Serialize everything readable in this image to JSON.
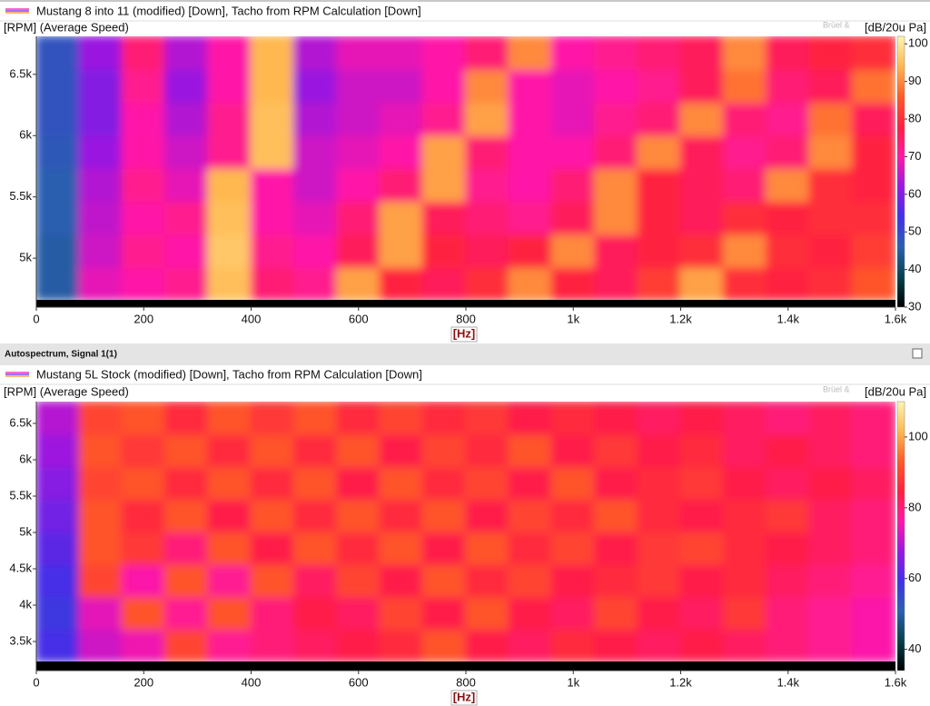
{
  "chart_data": [
    {
      "type": "heatmap",
      "legend": "Mustang 8 into 11 (modified) [Down], Tacho from RPM Calculation [Down]",
      "ylabel": "[RPM] (Average Speed)",
      "xlabel": "[Hz]",
      "colorbar_label": "[dB/20u Pa]",
      "watermark": "Brüel &",
      "xlim": [
        0,
        1600
      ],
      "xticks": [
        0,
        200,
        400,
        600,
        800,
        {
          "value": 1000,
          "label": "1k"
        },
        {
          "value": 1200,
          "label": "1.2k"
        },
        {
          "value": 1400,
          "label": "1.4k"
        },
        {
          "value": 1600,
          "label": "1.6k"
        }
      ],
      "ylim": [
        4660,
        6810
      ],
      "yticks": [
        {
          "value": 5000,
          "label": "5k"
        },
        {
          "value": 5500,
          "label": "5.5k"
        },
        {
          "value": 6000,
          "label": "6k"
        },
        {
          "value": 6500,
          "label": "6.5k"
        }
      ],
      "clim": [
        30,
        102
      ],
      "cticks": [
        30,
        40,
        50,
        60,
        70,
        80,
        90,
        100
      ],
      "colormap": [
        "#000000",
        "#06404c",
        "#2c5fb0",
        "#4030e8",
        "#9a18e0",
        "#ff18a8",
        "#ff2040",
        "#ff5a28",
        "#ffb850",
        "#fff4b0"
      ],
      "z": [
        [
          45,
          68,
          70,
          72,
          95,
          74,
          72,
          92,
          78,
          76,
          80,
          90,
          78,
          76,
          82,
          92,
          80,
          78,
          80,
          85
        ],
        [
          45,
          66,
          72,
          70,
          96,
          72,
          70,
          76,
          92,
          78,
          76,
          78,
          90,
          76,
          78,
          80,
          90,
          80,
          78,
          82
        ],
        [
          46,
          65,
          70,
          72,
          95,
          70,
          68,
          74,
          92,
          76,
          74,
          72,
          76,
          90,
          78,
          76,
          80,
          78,
          80,
          80
        ],
        [
          46,
          64,
          72,
          68,
          94,
          70,
          66,
          70,
          74,
          92,
          72,
          70,
          74,
          90,
          78,
          76,
          74,
          90,
          80,
          78
        ],
        [
          47,
          62,
          70,
          66,
          72,
          95,
          66,
          68,
          70,
          92,
          74,
          70,
          70,
          74,
          90,
          76,
          72,
          74,
          90,
          78
        ],
        [
          48,
          60,
          70,
          64,
          72,
          95,
          64,
          66,
          68,
          72,
          92,
          70,
          68,
          72,
          74,
          90,
          74,
          72,
          88,
          76
        ],
        [
          48,
          60,
          72,
          62,
          70,
          94,
          62,
          66,
          66,
          70,
          90,
          70,
          68,
          70,
          72,
          76,
          88,
          74,
          76,
          88
        ],
        [
          48,
          62,
          74,
          64,
          70,
          94,
          64,
          68,
          68,
          70,
          74,
          90,
          70,
          72,
          74,
          76,
          90,
          76,
          78,
          80
        ]
      ]
    },
    {
      "type": "heatmap",
      "window_title": "Autospectrum, Signal 1(1)",
      "legend": "Mustang 5L Stock (modified) [Down], Tacho from RPM Calculation [Down]",
      "ylabel": "[RPM] (Average Speed)",
      "xlabel": "[Hz]",
      "colorbar_label": "[dB/20u Pa]",
      "watermark": "Brüel &",
      "xlim": [
        0,
        1600
      ],
      "xticks": [
        0,
        200,
        400,
        600,
        800,
        {
          "value": 1000,
          "label": "1k"
        },
        {
          "value": 1200,
          "label": "1.2k"
        },
        {
          "value": 1400,
          "label": "1.4k"
        },
        {
          "value": 1600,
          "label": "1.6k"
        }
      ],
      "ylim": [
        3225,
        6800
      ],
      "yticks": [
        {
          "value": 3500,
          "label": "3.5k"
        },
        {
          "value": 4000,
          "label": "4k"
        },
        {
          "value": 4500,
          "label": "4.5k"
        },
        {
          "value": 5000,
          "label": "5k"
        },
        {
          "value": 5500,
          "label": "5.5k"
        },
        {
          "value": 6000,
          "label": "6k"
        },
        {
          "value": 6500,
          "label": "6.5k"
        }
      ],
      "clim": [
        34,
        110
      ],
      "cticks": [
        40,
        60,
        80,
        100
      ],
      "colormap": [
        "#000000",
        "#06404c",
        "#2c5fb0",
        "#4030e8",
        "#9a18e0",
        "#ff18a8",
        "#ff2040",
        "#ff5a28",
        "#ffb850",
        "#fff4b0"
      ],
      "z": [
        [
          60,
          72,
          75,
          90,
          78,
          80,
          82,
          84,
          86,
          92,
          84,
          82,
          86,
          84,
          82,
          84,
          82,
          80,
          78,
          76
        ],
        [
          58,
          74,
          92,
          78,
          92,
          80,
          84,
          82,
          90,
          84,
          92,
          84,
          82,
          90,
          84,
          82,
          88,
          80,
          78,
          76
        ],
        [
          60,
          90,
          76,
          92,
          78,
          92,
          82,
          90,
          84,
          92,
          86,
          90,
          84,
          86,
          88,
          84,
          86,
          82,
          80,
          78
        ],
        [
          62,
          92,
          88,
          80,
          92,
          84,
          92,
          86,
          92,
          84,
          92,
          86,
          90,
          84,
          88,
          90,
          86,
          84,
          82,
          80
        ],
        [
          64,
          92,
          86,
          92,
          84,
          92,
          86,
          92,
          86,
          92,
          84,
          90,
          86,
          92,
          86,
          84,
          86,
          88,
          82,
          80
        ],
        [
          66,
          90,
          92,
          86,
          92,
          86,
          92,
          84,
          92,
          86,
          90,
          84,
          92,
          84,
          86,
          88,
          84,
          82,
          84,
          82
        ],
        [
          68,
          92,
          88,
          92,
          86,
          92,
          86,
          92,
          84,
          90,
          86,
          92,
          84,
          88,
          84,
          86,
          82,
          84,
          82,
          80
        ],
        [
          70,
          90,
          92,
          86,
          92,
          88,
          92,
          86,
          90,
          86,
          88,
          84,
          86,
          84,
          82,
          84,
          82,
          80,
          82,
          80
        ]
      ]
    }
  ]
}
